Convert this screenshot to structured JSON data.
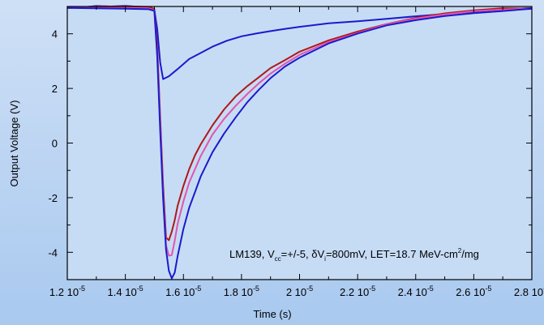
{
  "chart_data": {
    "type": "line",
    "xlabel": "Time (s)",
    "ylabel": "Output Voltage (V)",
    "xlim": [
      1.2e-05,
      2.8e-05
    ],
    "ylim": [
      -5,
      5
    ],
    "grid": false,
    "x_ticks": [
      {
        "value": 1.2e-05,
        "mantissa": "1.2",
        "exp": "-5"
      },
      {
        "value": 1.4e-05,
        "mantissa": "1.4",
        "exp": "-5"
      },
      {
        "value": 1.6e-05,
        "mantissa": "1.6",
        "exp": "-5"
      },
      {
        "value": 1.8e-05,
        "mantissa": "1.8",
        "exp": "-5"
      },
      {
        "value": 2e-05,
        "mantissa": "2",
        "exp": "-5"
      },
      {
        "value": 2.2e-05,
        "mantissa": "2.2",
        "exp": "-5"
      },
      {
        "value": 2.4e-05,
        "mantissa": "2.4",
        "exp": "-5"
      },
      {
        "value": 2.6e-05,
        "mantissa": "2.6",
        "exp": "-5"
      },
      {
        "value": 2.8e-05,
        "mantissa": "2.8",
        "exp": "-5"
      }
    ],
    "y_ticks": [
      {
        "value": 4,
        "label": "4"
      },
      {
        "value": 2,
        "label": "2"
      },
      {
        "value": 0,
        "label": "0"
      },
      {
        "value": -2,
        "label": "-2"
      },
      {
        "value": -4,
        "label": "-4"
      }
    ],
    "annotation": {
      "t1": "LM139, V",
      "t1_sub": "cc",
      "t2": "=+/-5, δV",
      "t2_sub": "i",
      "t3": "=800mV, LET=18.7 MeV-cm",
      "t3_sup": "2",
      "t4": "/mg"
    },
    "series": [
      {
        "color": "#1a1acc",
        "x": [
          1.2e-05,
          1.25e-05,
          1.3e-05,
          1.35e-05,
          1.4e-05,
          1.45e-05,
          1.48e-05,
          1.5e-05,
          1.51e-05,
          1.52e-05,
          1.53e-05,
          1.55e-05,
          1.58e-05,
          1.62e-05,
          1.66e-05,
          1.7e-05,
          1.75e-05,
          1.8e-05,
          1.85e-05,
          1.9e-05,
          1.95e-05,
          2e-05,
          2.1e-05,
          2.2e-05,
          2.3e-05,
          2.4e-05,
          2.5e-05,
          2.6e-05,
          2.7e-05,
          2.8e-05
        ],
        "y": [
          4.95,
          4.92,
          4.96,
          4.94,
          4.97,
          4.95,
          4.96,
          4.9,
          4.2,
          3.0,
          2.4,
          2.5,
          2.75,
          3.1,
          3.3,
          3.5,
          3.7,
          3.85,
          3.95,
          4.05,
          4.15,
          4.25,
          4.4,
          4.5,
          4.6,
          4.7,
          4.78,
          4.85,
          4.9,
          4.95
        ]
      },
      {
        "color": "#b01818",
        "x": [
          1.2e-05,
          1.3e-05,
          1.4e-05,
          1.48e-05,
          1.5e-05,
          1.51e-05,
          1.52e-05,
          1.53e-05,
          1.54e-05,
          1.55e-05,
          1.56e-05,
          1.57e-05,
          1.58e-05,
          1.6e-05,
          1.62e-05,
          1.64e-05,
          1.66e-05,
          1.7e-05,
          1.74e-05,
          1.78e-05,
          1.82e-05,
          1.86e-05,
          1.9e-05,
          1.95e-05,
          2e-05,
          2.1e-05,
          2.2e-05,
          2.3e-05,
          2.4e-05,
          2.5e-05,
          2.6e-05,
          2.7e-05,
          2.8e-05
        ],
        "y": [
          4.95,
          4.94,
          4.95,
          4.95,
          4.9,
          3.5,
          1.0,
          -1.5,
          -3.4,
          -3.5,
          -3.2,
          -2.8,
          -2.3,
          -1.6,
          -1.0,
          -0.5,
          -0.1,
          0.6,
          1.2,
          1.7,
          2.1,
          2.45,
          2.8,
          3.1,
          3.4,
          3.8,
          4.1,
          4.35,
          4.55,
          4.7,
          4.8,
          4.88,
          4.92
        ]
      },
      {
        "color": "#e055b0",
        "x": [
          1.2e-05,
          1.3e-05,
          1.4e-05,
          1.48e-05,
          1.5e-05,
          1.51e-05,
          1.52e-05,
          1.53e-05,
          1.54e-05,
          1.55e-05,
          1.56e-05,
          1.57e-05,
          1.58e-05,
          1.6e-05,
          1.62e-05,
          1.64e-05,
          1.66e-05,
          1.7e-05,
          1.74e-05,
          1.78e-05,
          1.82e-05,
          1.86e-05,
          1.9e-05,
          1.95e-05,
          2e-05,
          2.1e-05,
          2.2e-05,
          2.3e-05,
          2.4e-05,
          2.5e-05,
          2.6e-05,
          2.7e-05,
          2.8e-05
        ],
        "y": [
          4.95,
          4.94,
          4.95,
          4.95,
          4.9,
          3.3,
          0.8,
          -1.8,
          -3.7,
          -4.1,
          -4.1,
          -3.6,
          -3.0,
          -2.2,
          -1.5,
          -1.0,
          -0.5,
          0.3,
          0.9,
          1.4,
          1.85,
          2.25,
          2.6,
          2.95,
          3.25,
          3.7,
          4.0,
          4.3,
          4.5,
          4.65,
          4.78,
          4.86,
          4.92
        ]
      },
      {
        "color": "#1a1acc",
        "x": [
          1.2e-05,
          1.3e-05,
          1.4e-05,
          1.48e-05,
          1.5e-05,
          1.51e-05,
          1.52e-05,
          1.53e-05,
          1.54e-05,
          1.55e-05,
          1.56e-05,
          1.57e-05,
          1.58e-05,
          1.6e-05,
          1.62e-05,
          1.64e-05,
          1.66e-05,
          1.7e-05,
          1.74e-05,
          1.78e-05,
          1.82e-05,
          1.86e-05,
          1.9e-05,
          1.95e-05,
          2e-05,
          2.1e-05,
          2.2e-05,
          2.3e-05,
          2.4e-05,
          2.5e-05,
          2.6e-05,
          2.7e-05,
          2.8e-05
        ],
        "y": [
          4.95,
          4.94,
          4.95,
          4.95,
          4.9,
          3.2,
          0.5,
          -2.0,
          -3.9,
          -4.7,
          -5.0,
          -4.8,
          -4.2,
          -3.2,
          -2.4,
          -1.8,
          -1.2,
          -0.3,
          0.4,
          1.0,
          1.55,
          2.0,
          2.4,
          2.8,
          3.1,
          3.6,
          3.95,
          4.25,
          4.45,
          4.62,
          4.75,
          4.85,
          4.92
        ]
      }
    ]
  }
}
